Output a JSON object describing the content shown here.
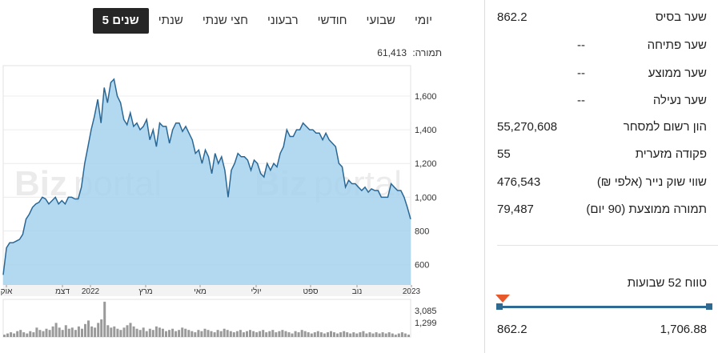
{
  "tabs": [
    {
      "label": "יומי",
      "active": false
    },
    {
      "label": "שבועי",
      "active": false
    },
    {
      "label": "חודשי",
      "active": false
    },
    {
      "label": "רבעוני",
      "active": false
    },
    {
      "label": "חצי שנתי",
      "active": false
    },
    {
      "label": "שנתי",
      "active": false
    },
    {
      "label": "5 שנים",
      "active": true
    }
  ],
  "volume": {
    "label": "תמורה:",
    "value": "61,413"
  },
  "watermark": {
    "bold": "Biz",
    "light": "portal"
  },
  "chart_data": {
    "type": "area",
    "title": "",
    "x_labels": [
      "אוק",
      "דצמ",
      "2022",
      "מרץ",
      "מאי",
      "יולי",
      "ספט",
      "נוב",
      "2023"
    ],
    "y_ticks": [
      600,
      800,
      1000,
      1200,
      1400,
      1600
    ],
    "ylim": [
      480,
      1780
    ],
    "y_ticks_volume": [
      "3,085",
      "1,299"
    ],
    "series_color": "#2a6794",
    "fill_color": "#a6d2ef",
    "values": [
      540,
      700,
      730,
      730,
      740,
      750,
      780,
      870,
      900,
      940,
      960,
      970,
      1000,
      990,
      960,
      980,
      1000,
      960,
      980,
      960,
      1000,
      1000,
      990,
      990,
      1060,
      1200,
      1300,
      1400,
      1480,
      1580,
      1440,
      1650,
      1560,
      1680,
      1700,
      1600,
      1560,
      1460,
      1430,
      1500,
      1420,
      1440,
      1400,
      1420,
      1460,
      1340,
      1400,
      1300,
      1440,
      1420,
      1420,
      1320,
      1400,
      1440,
      1440,
      1390,
      1420,
      1380,
      1340,
      1260,
      1280,
      1200,
      1280,
      1240,
      1140,
      1260,
      1200,
      1240,
      1160,
      1000,
      1160,
      1200,
      1260,
      1240,
      1240,
      1220,
      1160,
      1220,
      1200,
      1140,
      1120,
      1200,
      1160,
      1200,
      1180,
      1260,
      1300,
      1400,
      1360,
      1360,
      1400,
      1400,
      1440,
      1420,
      1400,
      1400,
      1380,
      1380,
      1340,
      1380,
      1340,
      1320,
      1300,
      1200,
      1180,
      1060,
      1100,
      1080,
      1080,
      1060,
      1040,
      1060,
      1030,
      1050,
      1040,
      1040,
      1000,
      1000,
      1000,
      1080,
      1060,
      1040,
      1040,
      1000,
      940,
      870
    ],
    "volume_values": [
      2,
      3,
      4,
      3,
      5,
      6,
      4,
      3,
      5,
      4,
      8,
      6,
      5,
      7,
      6,
      9,
      12,
      8,
      6,
      10,
      7,
      8,
      6,
      9,
      7,
      11,
      14,
      9,
      8,
      12,
      15,
      30,
      10,
      8,
      9,
      7,
      6,
      8,
      10,
      12,
      9,
      7,
      6,
      8,
      5,
      7,
      6,
      9,
      8,
      7,
      5,
      6,
      7,
      5,
      6,
      8,
      7,
      6,
      5,
      4,
      6,
      5,
      7,
      6,
      5,
      4,
      6,
      5,
      7,
      6,
      5,
      4,
      5,
      6,
      4,
      5,
      6,
      5,
      4,
      5,
      6,
      4,
      5,
      6,
      4,
      5,
      6,
      5,
      4,
      3,
      5,
      4,
      6,
      5,
      4,
      3,
      4,
      5,
      4,
      3,
      4,
      5,
      4,
      3,
      4,
      5,
      4,
      3,
      4,
      3,
      4,
      5,
      3,
      4,
      3,
      4,
      3,
      4,
      3,
      4,
      3,
      2,
      3,
      4,
      3,
      2
    ],
    "volume_ylim": [
      0,
      32
    ]
  },
  "stats": [
    {
      "label": "שער בסיס",
      "value": "862.2"
    },
    {
      "label": "שער פתיחה",
      "value": "--"
    },
    {
      "label": "שער ממוצע",
      "value": "--"
    },
    {
      "label": "שער נעילה",
      "value": "--"
    },
    {
      "label": "הון רשום למסחר",
      "value": "55,270,608"
    },
    {
      "label": "פקודה מזערית",
      "value": "55"
    },
    {
      "label": "שווי שוק נייר (אלפי ₪)",
      "value": "476,543"
    },
    {
      "label": "תמורה ממוצעת (90 יום)",
      "value": "79,487"
    }
  ],
  "range52": {
    "title": "טווח 52 שבועות",
    "low": "862.2",
    "high": "1,706.88",
    "current_fraction": 0.0
  }
}
